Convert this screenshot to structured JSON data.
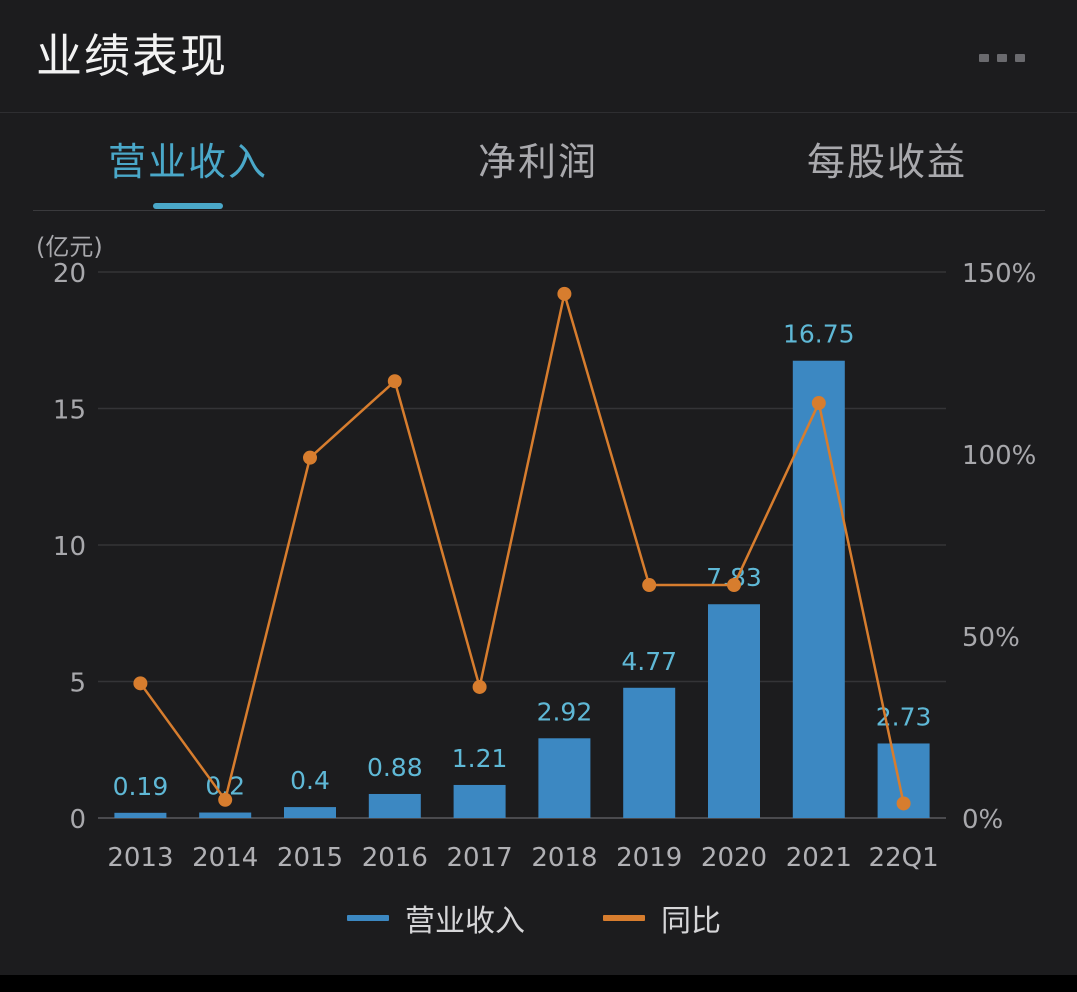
{
  "header": {
    "title": "业绩表现"
  },
  "tabs": [
    {
      "label": "营业收入",
      "active": true
    },
    {
      "label": "净利润",
      "active": false
    },
    {
      "label": "每股收益",
      "active": false
    }
  ],
  "colors": {
    "bar": "#3c88c2",
    "line": "#d77d2e",
    "accent": "#4aa8c9",
    "bar_label": "#5fb8d6"
  },
  "chart_data": {
    "type": "bar",
    "unit_label": "(亿元)",
    "categories": [
      "2013",
      "2014",
      "2015",
      "2016",
      "2017",
      "2018",
      "2019",
      "2020",
      "2021",
      "22Q1"
    ],
    "series": [
      {
        "name": "营业收入",
        "type": "bar",
        "axis": "left",
        "values": [
          0.19,
          0.2,
          0.4,
          0.88,
          1.21,
          2.92,
          4.77,
          7.83,
          16.75,
          2.73
        ],
        "labels": [
          "0.19",
          "0.2",
          "0.4",
          "0.88",
          "1.21",
          "2.92",
          "4.77",
          "7.83",
          "16.75",
          "2.73"
        ]
      },
      {
        "name": "同比",
        "type": "line",
        "axis": "right",
        "values": [
          37,
          5,
          99,
          120,
          36,
          144,
          64,
          64,
          114,
          4
        ]
      }
    ],
    "left_axis": {
      "ylim": [
        0,
        20
      ],
      "ticks": [
        "0",
        "5",
        "10",
        "15",
        "20"
      ]
    },
    "right_axis": {
      "ylim": [
        0,
        150
      ],
      "ticks": [
        "0%",
        "50%",
        "100%",
        "150%"
      ]
    },
    "grid": true,
    "legend": [
      "营业收入",
      "同比"
    ],
    "legend_position": "bottom-center"
  }
}
